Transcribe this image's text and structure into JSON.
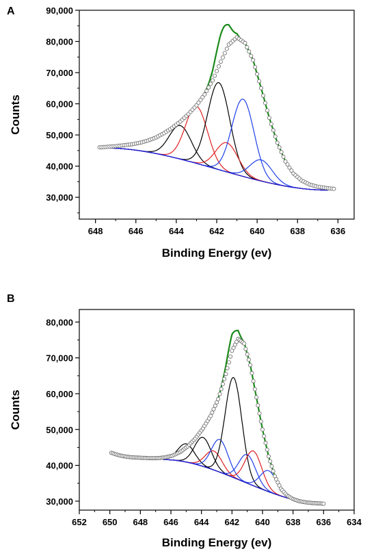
{
  "panels": [
    {
      "label": "A"
    },
    {
      "label": "B"
    }
  ],
  "colors": {
    "envelope": "#1a8a1a",
    "background": "#1f1fd6",
    "black": "#000000",
    "red": "#e02020",
    "blue": "#1f3fe8",
    "markers": "#666666"
  },
  "chart_data": [
    {
      "type": "scatter",
      "panel": "A",
      "xlabel": "Binding Energy (ev)",
      "ylabel": "Counts",
      "xlim": [
        648.8,
        635.2
      ],
      "ylim": [
        23000,
        90000
      ],
      "x_ticks": [
        648,
        646,
        644,
        642,
        640,
        638,
        636
      ],
      "x_tick_labels": [
        "648",
        "646",
        "644",
        "642",
        "640",
        "638",
        "636"
      ],
      "y_ticks": [
        30000,
        40000,
        50000,
        60000,
        70000,
        80000,
        90000
      ],
      "y_tick_labels": [
        "30,000",
        "40,000",
        "50,000",
        "60,000",
        "70,000",
        "80,000",
        "90,000"
      ],
      "grid": false,
      "legend": "none",
      "measured": [
        [
          647.8,
          46000
        ],
        [
          647.4,
          46200
        ],
        [
          647.0,
          46400
        ],
        [
          646.6,
          46700
        ],
        [
          646.2,
          47000
        ],
        [
          645.8,
          47500
        ],
        [
          645.4,
          48200
        ],
        [
          645.0,
          49200
        ],
        [
          644.6,
          50600
        ],
        [
          644.2,
          52300
        ],
        [
          643.8,
          54300
        ],
        [
          643.4,
          56700
        ],
        [
          643.0,
          59500
        ],
        [
          642.6,
          63000
        ],
        [
          642.2,
          67500
        ],
        [
          641.8,
          73500
        ],
        [
          641.4,
          79000
        ],
        [
          641.0,
          81300
        ],
        [
          640.6,
          79500
        ],
        [
          640.2,
          74000
        ],
        [
          639.8,
          65000
        ],
        [
          639.4,
          55500
        ],
        [
          639.0,
          47500
        ],
        [
          638.6,
          41500
        ],
        [
          638.2,
          37600
        ],
        [
          637.8,
          35400
        ],
        [
          637.4,
          34100
        ],
        [
          637.0,
          33400
        ],
        [
          636.6,
          33000
        ],
        [
          636.2,
          32700
        ]
      ],
      "envelope_peak": {
        "x": 641.7,
        "y": 84000
      },
      "background": {
        "x_start": 647.5,
        "y_start": 45800,
        "x_end": 636.5,
        "y_end": 32300
      },
      "components": [
        {
          "color": "black",
          "center": 643.8,
          "height": 53000
        },
        {
          "color": "red",
          "center": 643.0,
          "height": 59200
        },
        {
          "color": "black",
          "center": 641.9,
          "height": 66800
        },
        {
          "color": "red",
          "center": 641.5,
          "height": 47500
        },
        {
          "color": "blue",
          "center": 640.7,
          "height": 61500
        },
        {
          "color": "blue",
          "center": 639.8,
          "height": 42000
        }
      ]
    },
    {
      "type": "scatter",
      "panel": "B",
      "xlabel": "Binding Energy (ev)",
      "ylabel": "Counts",
      "xlim": [
        652,
        634
      ],
      "ylim": [
        27500,
        83500
      ],
      "x_ticks": [
        652,
        650,
        648,
        646,
        644,
        642,
        640,
        638,
        636,
        634
      ],
      "x_tick_labels": [
        "652",
        "650",
        "648",
        "646",
        "644",
        "642",
        "640",
        "638",
        "636",
        "634"
      ],
      "y_ticks": [
        30000,
        40000,
        50000,
        60000,
        70000,
        80000
      ],
      "y_tick_labels": [
        "30,000",
        "40,000",
        "50,000",
        "60,000",
        "70,000",
        "80,000"
      ],
      "grid": false,
      "legend": "none",
      "measured": [
        [
          649.9,
          43500
        ],
        [
          649.4,
          42800
        ],
        [
          648.9,
          42400
        ],
        [
          648.4,
          42200
        ],
        [
          647.9,
          42100
        ],
        [
          647.4,
          42000
        ],
        [
          646.9,
          42000
        ],
        [
          646.4,
          42200
        ],
        [
          645.9,
          42700
        ],
        [
          645.4,
          43700
        ],
        [
          644.9,
          45300
        ],
        [
          644.4,
          47500
        ],
        [
          643.9,
          50300
        ],
        [
          643.4,
          53800
        ],
        [
          642.9,
          58500
        ],
        [
          642.4,
          65500
        ],
        [
          642.0,
          72000
        ],
        [
          641.6,
          75300
        ],
        [
          641.2,
          74000
        ],
        [
          640.8,
          68000
        ],
        [
          640.4,
          59000
        ],
        [
          640.0,
          50000
        ],
        [
          639.6,
          42500
        ],
        [
          639.2,
          37000
        ],
        [
          638.8,
          33500
        ],
        [
          638.4,
          31600
        ],
        [
          638.0,
          30600
        ],
        [
          637.6,
          30000
        ],
        [
          637.2,
          29700
        ],
        [
          636.8,
          29500
        ],
        [
          636.4,
          29400
        ],
        [
          636.0,
          29300
        ]
      ],
      "envelope_peak": {
        "x": 642.0,
        "y": 76500
      },
      "background": {
        "x_start": 646.5,
        "y_start": 41600,
        "x_end": 636.0,
        "y_end": 29300
      },
      "components": [
        {
          "color": "black",
          "center": 645.0,
          "height": 46000
        },
        {
          "color": "black",
          "center": 643.9,
          "height": 47800
        },
        {
          "color": "red",
          "center": 643.2,
          "height": 44000
        },
        {
          "color": "blue",
          "center": 642.8,
          "height": 47200
        },
        {
          "color": "black",
          "center": 641.9,
          "height": 64500
        },
        {
          "color": "blue",
          "center": 641.0,
          "height": 43000
        },
        {
          "color": "red",
          "center": 640.6,
          "height": 44000
        },
        {
          "color": "blue",
          "center": 639.6,
          "height": 38500
        }
      ]
    }
  ]
}
